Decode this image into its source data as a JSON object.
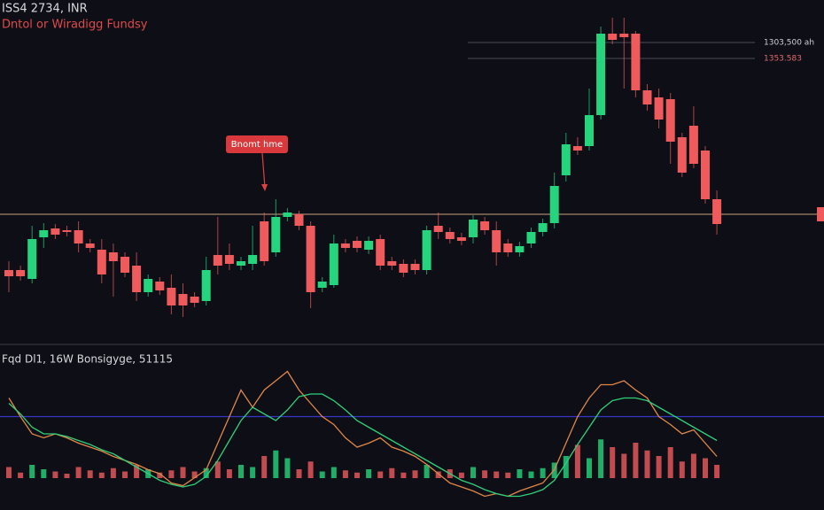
{
  "chart_data": {
    "type": "candlestick",
    "title": "ISS4 2734, INR",
    "subtitle": "Dntol or Wiradigg Fundsy",
    "annotation": "Bnomt hme",
    "categories": [
      null,
      null,
      null,
      null,
      null,
      null,
      null,
      null,
      null,
      null,
      null,
      null,
      null,
      null,
      null,
      null,
      null,
      null,
      null,
      null,
      null,
      null,
      null,
      null,
      null,
      null,
      null,
      null,
      null,
      null,
      null,
      null,
      null,
      null,
      null,
      null,
      null,
      null,
      null,
      null,
      null,
      null,
      null,
      null,
      null,
      null,
      null,
      null,
      null,
      null,
      null,
      null,
      null,
      null,
      null,
      null,
      null,
      null,
      null,
      null,
      null,
      null
    ],
    "open": [
      80,
      80,
      70,
      117,
      127,
      125,
      125,
      110,
      103,
      100,
      95,
      85,
      55,
      67,
      60,
      53,
      50,
      45,
      97,
      97,
      85,
      87,
      135,
      100,
      140,
      143,
      130,
      60,
      63,
      110,
      113,
      103,
      115,
      90,
      87,
      87,
      80,
      130,
      123,
      117,
      117,
      135,
      125,
      110,
      100,
      110,
      123,
      133,
      187,
      220,
      220,
      255,
      347,
      347,
      347,
      283,
      275,
      273,
      230,
      243,
      215,
      160
    ],
    "high": [
      90,
      85,
      130,
      133,
      132,
      130,
      135,
      115,
      115,
      110,
      100,
      100,
      75,
      72,
      75,
      65,
      55,
      95,
      140,
      110,
      95,
      130,
      145,
      160,
      150,
      147,
      135,
      72,
      120,
      115,
      118,
      118,
      120,
      95,
      92,
      92,
      130,
      145,
      128,
      122,
      142,
      140,
      135,
      115,
      112,
      128,
      138,
      190,
      235,
      230,
      285,
      355,
      365,
      365,
      350,
      290,
      285,
      280,
      235,
      265,
      220,
      170
    ],
    "low": [
      55,
      68,
      65,
      105,
      115,
      118,
      100,
      100,
      65,
      50,
      72,
      45,
      50,
      52,
      30,
      27,
      38,
      40,
      75,
      80,
      80,
      80,
      85,
      95,
      135,
      125,
      37,
      55,
      60,
      100,
      100,
      98,
      80,
      80,
      72,
      75,
      75,
      115,
      110,
      108,
      110,
      120,
      85,
      95,
      95,
      105,
      118,
      127,
      180,
      210,
      215,
      250,
      335,
      285,
      275,
      260,
      240,
      200,
      185,
      195,
      155,
      120
    ],
    "close": [
      73,
      73,
      115,
      125,
      120,
      123,
      110,
      105,
      75,
      90,
      77,
      55,
      70,
      57,
      40,
      40,
      43,
      80,
      85,
      87,
      90,
      97,
      90,
      140,
      145,
      130,
      55,
      67,
      110,
      105,
      105,
      113,
      85,
      85,
      77,
      80,
      125,
      123,
      115,
      113,
      137,
      125,
      100,
      100,
      107,
      123,
      133,
      175,
      222,
      215,
      255,
      347,
      340,
      343,
      283,
      267,
      250,
      225,
      190,
      200,
      160,
      132
    ],
    "up_color": "#25d47c",
    "down_color": "#ef5a5d",
    "ylim": [
      0,
      375
    ],
    "levels": [
      {
        "value": 143,
        "color": "#c9a380"
      },
      {
        "value": 337,
        "label": "1303,500 ah",
        "color": "#4a4b55"
      },
      {
        "value": 319,
        "label": "1353.583",
        "color": "#4a4b55"
      }
    ],
    "lower_panel": {
      "title": "Fqd Dl1, 16W Bonsigyge, 51115",
      "ylim": [
        0,
        100
      ],
      "y2lim": [
        -20,
        100
      ],
      "series": [
        {
          "color": "#e0874a",
          "values": [
            77,
            63,
            50,
            47,
            50,
            47,
            43,
            40,
            37,
            33,
            30,
            27,
            23,
            20,
            13,
            11,
            17,
            23,
            43,
            63,
            83,
            70,
            83,
            90,
            97,
            83,
            73,
            63,
            57,
            47,
            40,
            43,
            47,
            40,
            37,
            33,
            27,
            20,
            13,
            10,
            7,
            3,
            5,
            3,
            7,
            10,
            13,
            23,
            43,
            63,
            77,
            87,
            87,
            90,
            83,
            77,
            63,
            57,
            50,
            53,
            43,
            33
          ]
        },
        {
          "color": "#2fcf7a",
          "values": [
            73,
            65,
            55,
            50,
            50,
            48,
            45,
            42,
            38,
            35,
            30,
            25,
            20,
            15,
            12,
            10,
            12,
            18,
            30,
            45,
            60,
            70,
            65,
            60,
            68,
            78,
            80,
            80,
            75,
            68,
            60,
            55,
            50,
            45,
            40,
            35,
            30,
            25,
            20,
            15,
            12,
            8,
            5,
            3,
            3,
            5,
            8,
            15,
            28,
            42,
            55,
            68,
            75,
            77,
            77,
            75,
            70,
            65,
            60,
            55,
            50,
            45
          ]
        }
      ],
      "volume": [
        10,
        5,
        12,
        8,
        6,
        4,
        10,
        7,
        5,
        9,
        6,
        12,
        8,
        5,
        7,
        10,
        6,
        9,
        15,
        8,
        12,
        10,
        20,
        25,
        18,
        8,
        15,
        6,
        10,
        7,
        5,
        8,
        6,
        9,
        5,
        7,
        12,
        6,
        8,
        5,
        10,
        7,
        6,
        5,
        8,
        6,
        9,
        14,
        20,
        30,
        18,
        35,
        28,
        22,
        32,
        25,
        20,
        28,
        15,
        22,
        18,
        12
      ],
      "hline": 63,
      "hline_color": "#3535c8"
    }
  }
}
